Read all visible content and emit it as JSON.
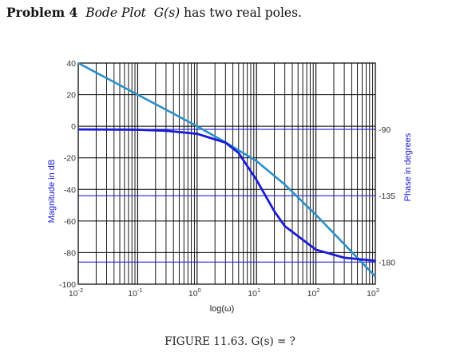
{
  "heading": {
    "problem": "Problem 4",
    "topic": "Bode Plot",
    "tf": "G(s)",
    "rest": "has two real poles."
  },
  "caption": "FIGURE 11.63. G(s) = ?",
  "chart_data": {
    "type": "line",
    "xlabel": "log(ω)",
    "ylabel_left": "Magnitude in dB",
    "ylabel_right": "Phase in degrees",
    "xscale": "log",
    "xlim": [
      0.01,
      1000
    ],
    "ylim_left": [
      -100,
      40
    ],
    "ylim_right": [
      -195,
      -45
    ],
    "grid": true,
    "x_tick_labels": [
      "10^-2",
      "10^-1",
      "10^0",
      "10^1",
      "10^2",
      "10^3"
    ],
    "y_tick_labels_left": [
      "40",
      "20",
      "0",
      "-20",
      "-40",
      "-60",
      "-80",
      "-100"
    ],
    "y_tick_labels_right": [
      "-90",
      "-135",
      "-180"
    ],
    "series": [
      {
        "axis": "left",
        "color": "#2a8fc8",
        "x": [
          0.01,
          0.1,
          1,
          3,
          10,
          30,
          100,
          1000
        ],
        "y": [
          40,
          20,
          0,
          -10.2,
          -22.0,
          -37.0,
          -56.1,
          -95.1
        ]
      },
      {
        "axis": "right",
        "color": "#1b1bd6",
        "x": [
          0.01,
          0.1,
          0.3,
          1,
          3,
          5,
          10,
          20,
          30,
          100,
          300,
          1000
        ],
        "y": [
          -90.0,
          -90.2,
          -90.9,
          -93.0,
          -99.0,
          -106.0,
          -124.3,
          -145.6,
          -155.7,
          -171.6,
          -177.1,
          -179.1
        ]
      }
    ]
  }
}
